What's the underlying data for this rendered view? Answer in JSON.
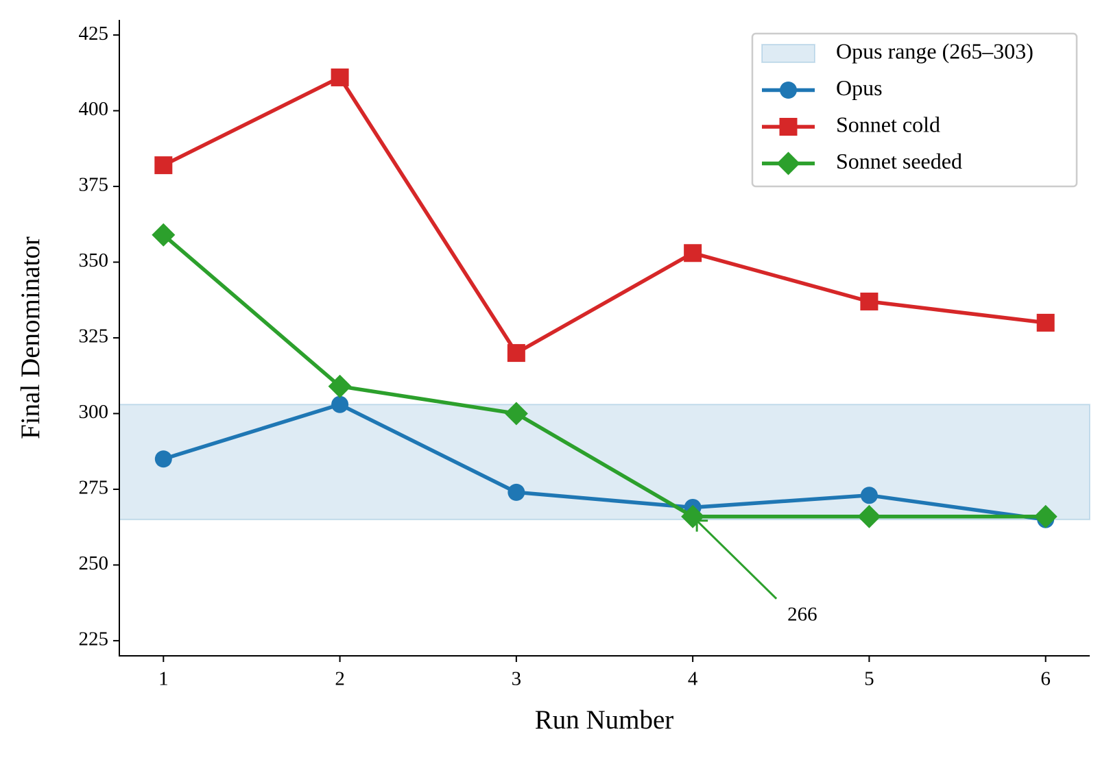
{
  "chart_data": {
    "type": "line",
    "x": [
      1,
      2,
      3,
      4,
      5,
      6
    ],
    "xlabel": "Run Number",
    "ylabel": "Final Denominator",
    "xlim": [
      0.75,
      6.25
    ],
    "ylim": [
      220,
      430
    ],
    "xticks": [
      1,
      2,
      3,
      4,
      5,
      6
    ],
    "yticks": [
      225,
      250,
      275,
      300,
      325,
      350,
      375,
      400,
      425
    ],
    "band": {
      "name": "Opus range (265–303)",
      "range": [
        265,
        303
      ],
      "color": "#1f77b4"
    },
    "series": [
      {
        "name": "Opus",
        "color": "#1f77b4",
        "marker": "circle",
        "values": [
          285,
          303,
          274,
          269,
          273,
          265
        ]
      },
      {
        "name": "Sonnet cold",
        "color": "#d62728",
        "marker": "square",
        "values": [
          382,
          411,
          320,
          353,
          337,
          330
        ]
      },
      {
        "name": "Sonnet seeded",
        "color": "#2ca02c",
        "marker": "diamond",
        "values": [
          359,
          309,
          300,
          266,
          266,
          266
        ]
      }
    ],
    "annotation": {
      "text": "266",
      "x": 4,
      "y": 266,
      "color": "#2ca02c"
    },
    "legend": "upper right"
  }
}
